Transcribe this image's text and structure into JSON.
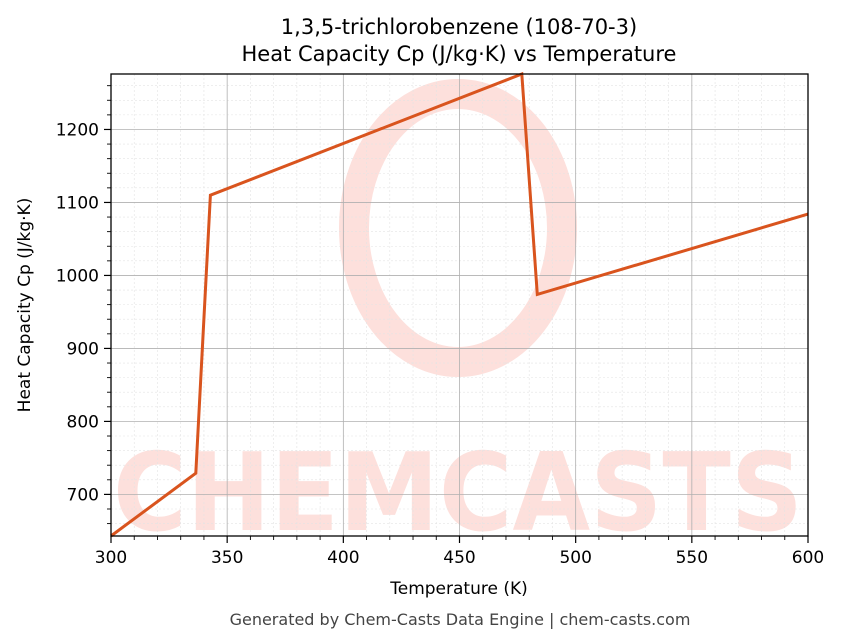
{
  "chart_data": {
    "type": "line",
    "title": "1,3,5-trichlorobenzene (108-70-3)",
    "subtitle": "Heat Capacity Cp (J/kg·K) vs Temperature",
    "xlabel": "Temperature (K)",
    "ylabel": "Heat Capacity Cp (J/kg·K)",
    "xlim": [
      300,
      600
    ],
    "ylim": [
      643,
      1276
    ],
    "xticks": [
      300,
      350,
      400,
      450,
      500,
      550,
      600
    ],
    "yticks": [
      700,
      800,
      900,
      1000,
      1100,
      1200
    ],
    "grid": true,
    "line_color": "#d9541e",
    "series": [
      {
        "x": [
          300,
          336.5,
          342.8,
          476.8,
          483.5,
          600
        ],
        "y": [
          643,
          729,
          1110,
          1276,
          974,
          1084
        ]
      }
    ]
  },
  "watermark": {
    "text": "CHEMCASTS",
    "color": "#fde0dc"
  },
  "footer": "Generated by Chem-Casts Data Engine | chem-casts.com"
}
